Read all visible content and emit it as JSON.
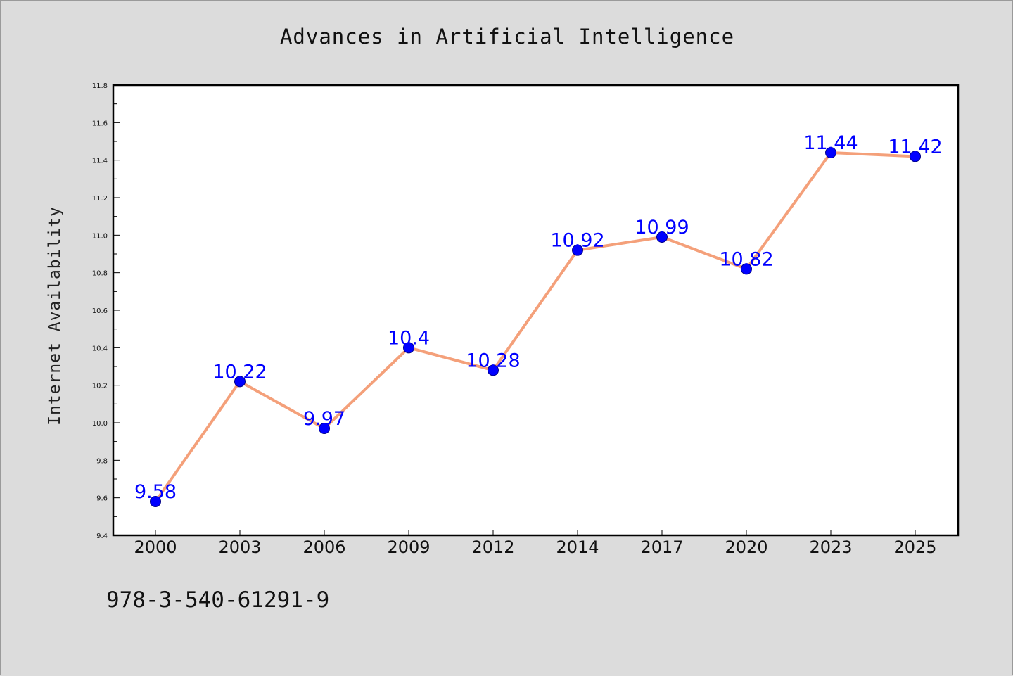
{
  "chart_data": {
    "type": "line",
    "title": "Advances in Artificial Intelligence",
    "xlabel": "",
    "ylabel": "Internet Availability",
    "categories": [
      "2000",
      "2003",
      "2006",
      "2009",
      "2012",
      "2014",
      "2017",
      "2020",
      "2023",
      "2025"
    ],
    "series": [
      {
        "values": [
          9.58,
          10.22,
          9.97,
          10.4,
          10.28,
          10.92,
          10.99,
          10.82,
          11.44,
          11.42
        ],
        "line_color": "#f4a07a",
        "marker_color": "#0000ff"
      }
    ],
    "data_labels": [
      "9.58",
      "10.22",
      "9.97",
      "10.4",
      "10.28",
      "10.92",
      "10.99",
      "10.82",
      "11.44",
      "11.42"
    ],
    "ylim": [
      9.4,
      11.8
    ],
    "yticks": [
      "9.4",
      "9.6",
      "9.8",
      "10.0",
      "10.2",
      "10.4",
      "10.6",
      "10.8",
      "11.0",
      "11.2",
      "11.4",
      "11.6",
      "11.8"
    ],
    "grid": false,
    "legend": "none"
  },
  "footer": {
    "code": "978-3-540-61291-9"
  },
  "colors": {
    "background": "#dcdcdc",
    "plot_background": "#ffffff",
    "line": "#f4a07a",
    "marker": "#0000ff",
    "data_label": "#0000ff"
  }
}
